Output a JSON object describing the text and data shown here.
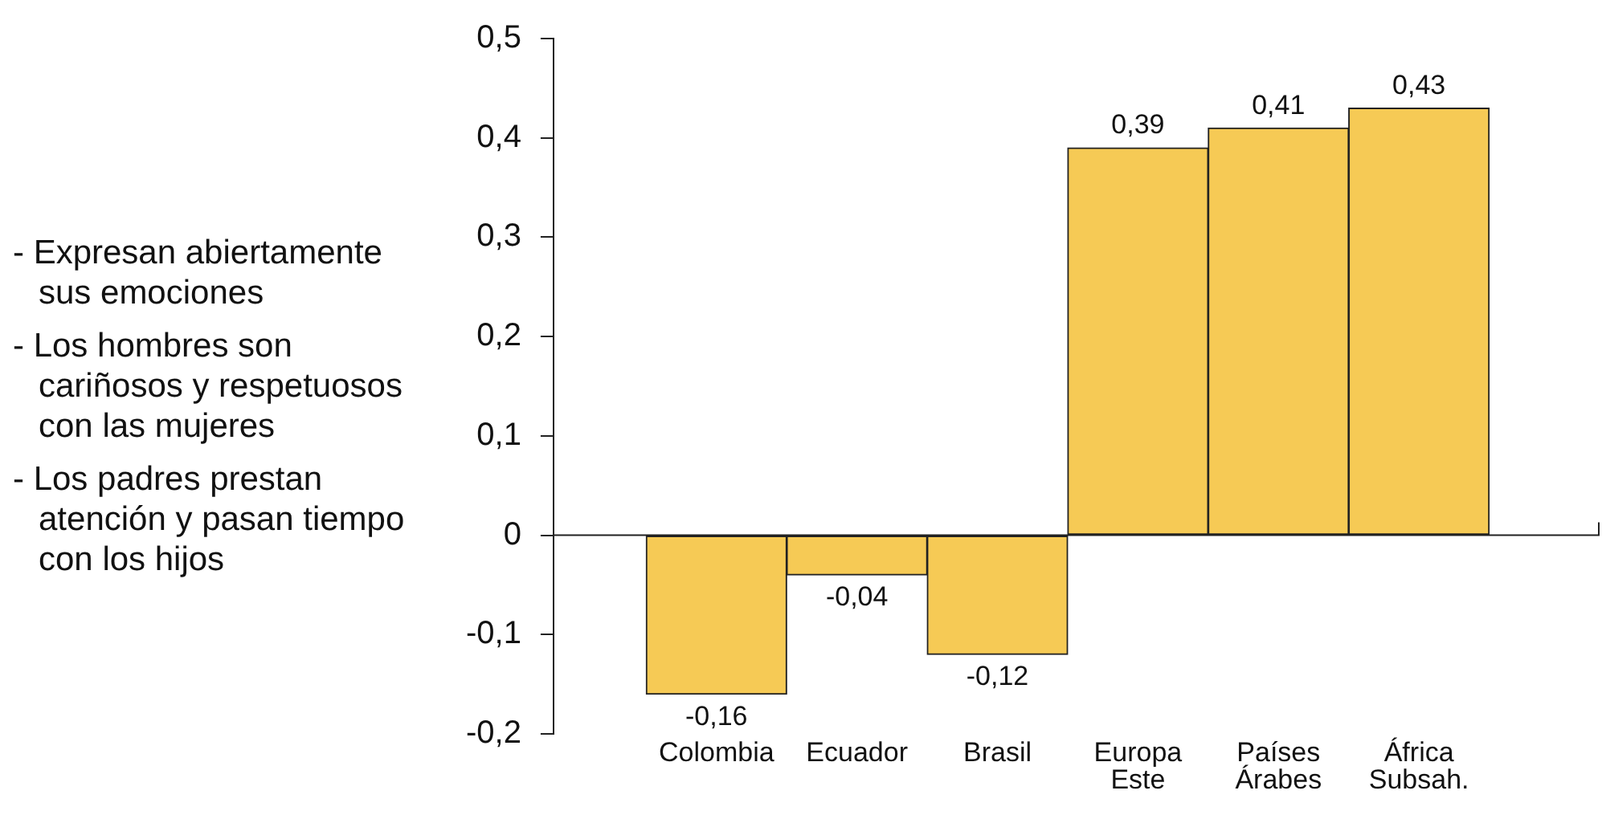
{
  "chart_data": {
    "type": "bar",
    "categories": [
      "Colombia",
      "Ecuador",
      "Brasil",
      "Europa Este",
      "Países Árabes",
      "África Subsah."
    ],
    "values": [
      -0.16,
      -0.04,
      -0.12,
      0.39,
      0.41,
      0.43
    ],
    "value_labels": [
      "-0,16",
      "-0,04",
      "-0,12",
      "0,39",
      "0,41",
      "0,43"
    ],
    "color": "#f6ca55",
    "ylim": [
      -0.2,
      0.5
    ],
    "yticks": [
      {
        "value": -0.2,
        "label": "-0,2"
      },
      {
        "value": -0.1,
        "label": "-0,1"
      },
      0,
      {
        "value": 0.1,
        "label": "0,1"
      },
      {
        "value": 0.2,
        "label": "0,2"
      },
      {
        "value": 0.3,
        "label": "0,3"
      },
      {
        "value": 0.4,
        "label": "0,4"
      },
      {
        "value": 0.5,
        "label": "0,5"
      }
    ],
    "annotations": [
      "- Expresan abiertamente\nsus emociones",
      "- Los hombres son\ncariñosos y respetuosos\ncon las mujeres",
      "- Los padres prestan\natención y pasan tiempo\ncon los hijos"
    ],
    "ref_lines": [
      {
        "axis": "y",
        "value": 0
      }
    ],
    "grid": false,
    "legend": false
  }
}
